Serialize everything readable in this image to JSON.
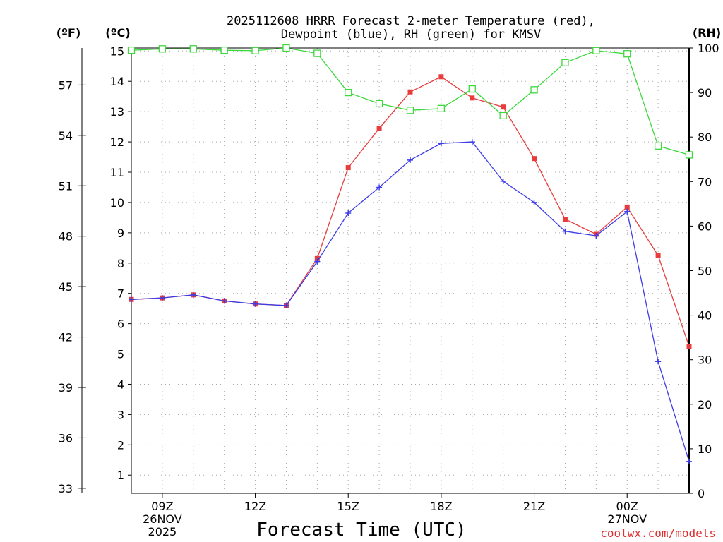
{
  "chart_data": {
    "type": "line",
    "title": "2025112608 HRRR Forecast 2-meter Temperature (red),",
    "subtitle": "Dewpoint (blue), RH (green) for KMSV",
    "xlabel": "Forecast Time (UTC)",
    "units": {
      "left_f": "(ºF)",
      "left_c": "(ºC)",
      "right_rh": "(RH)"
    },
    "credit": "coolwx.com/models",
    "x_hours": [
      8,
      9,
      10,
      11,
      12,
      13,
      14,
      15,
      16,
      17,
      18,
      19,
      20,
      21,
      22,
      23,
      24,
      25,
      26
    ],
    "xlim": [
      8,
      26
    ],
    "x_ticks": [
      {
        "x": 9,
        "lines": [
          "09Z",
          "26NOV",
          "2025"
        ]
      },
      {
        "x": 12,
        "lines": [
          "12Z"
        ]
      },
      {
        "x": 15,
        "lines": [
          "15Z"
        ]
      },
      {
        "x": 18,
        "lines": [
          "18Z"
        ]
      },
      {
        "x": 21,
        "lines": [
          "21Z"
        ]
      },
      {
        "x": 24,
        "lines": [
          "00Z",
          "27NOV"
        ]
      }
    ],
    "y_celsius": {
      "lim": [
        0.4,
        15.1
      ],
      "ticks": [
        1,
        2,
        3,
        4,
        5,
        6,
        7,
        8,
        9,
        10,
        11,
        12,
        13,
        14,
        15
      ]
    },
    "y_fahrenheit": {
      "lim": [
        32.7,
        59.2
      ],
      "ticks": [
        33,
        36,
        39,
        42,
        45,
        48,
        51,
        54,
        57
      ]
    },
    "y_rh": {
      "lim": [
        0,
        100
      ],
      "ticks": [
        0,
        10,
        20,
        30,
        40,
        50,
        60,
        70,
        80,
        90,
        100
      ]
    },
    "series": [
      {
        "name": "Temperature",
        "axis": "celsius",
        "color": "#e83c3c",
        "marker": "filled-square",
        "values": [
          6.8,
          6.85,
          6.95,
          6.75,
          6.65,
          6.6,
          8.15,
          11.15,
          12.45,
          13.65,
          14.15,
          13.45,
          13.15,
          11.45,
          9.45,
          8.95,
          9.85,
          8.25,
          5.25
        ]
      },
      {
        "name": "Dewpoint",
        "axis": "celsius",
        "color": "#3c3ce8",
        "marker": "plus",
        "values": [
          6.8,
          6.85,
          6.95,
          6.75,
          6.65,
          6.6,
          8.05,
          9.65,
          10.5,
          11.4,
          11.95,
          12.0,
          10.7,
          10.0,
          9.05,
          8.9,
          9.7,
          4.75,
          1.45
        ]
      },
      {
        "name": "RH",
        "axis": "rh",
        "color": "#3cd83c",
        "marker": "open-square",
        "values": [
          99.5,
          99.8,
          99.8,
          99.5,
          99.4,
          100.0,
          98.8,
          90.0,
          87.5,
          86.0,
          86.4,
          90.8,
          84.8,
          90.6,
          96.7,
          99.4,
          98.7,
          78.0,
          76.0
        ]
      }
    ]
  }
}
